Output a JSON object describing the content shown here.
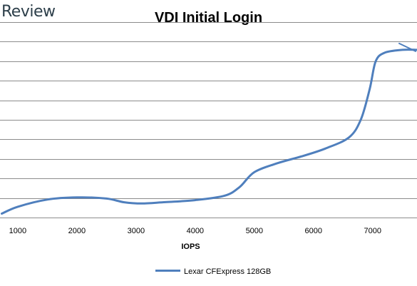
{
  "brand": "Review",
  "colors": {
    "series": "#4f7fbd",
    "grid": "#8c8c8c"
  },
  "chart_data": {
    "type": "line",
    "title": "VDI Initial Login",
    "xlabel": "IOPS",
    "ylabel": "",
    "xlim": [
      700,
      7750
    ],
    "ylim": [
      0,
      10
    ],
    "x_ticks": [
      1000,
      2000,
      3000,
      4000,
      5000,
      6000,
      7000
    ],
    "y_gridlines": [
      1,
      2,
      3,
      4,
      5,
      6,
      7,
      8,
      9,
      10
    ],
    "grid": true,
    "legend": "bottom",
    "series": [
      {
        "name": "Lexar CFExpress 128GB",
        "points": [
          [
            730,
            0.2
          ],
          [
            1000,
            0.55
          ],
          [
            1500,
            0.92
          ],
          [
            2000,
            1.03
          ],
          [
            2500,
            0.97
          ],
          [
            2800,
            0.78
          ],
          [
            3100,
            0.72
          ],
          [
            3500,
            0.79
          ],
          [
            4000,
            0.89
          ],
          [
            4500,
            1.12
          ],
          [
            4750,
            1.56
          ],
          [
            5000,
            2.32
          ],
          [
            5400,
            2.79
          ],
          [
            5800,
            3.13
          ],
          [
            6200,
            3.53
          ],
          [
            6600,
            4.1
          ],
          [
            6800,
            5.01
          ],
          [
            6950,
            6.57
          ],
          [
            7050,
            7.98
          ],
          [
            7200,
            8.43
          ],
          [
            7500,
            8.58
          ],
          [
            7750,
            8.58
          ]
        ]
      }
    ]
  }
}
